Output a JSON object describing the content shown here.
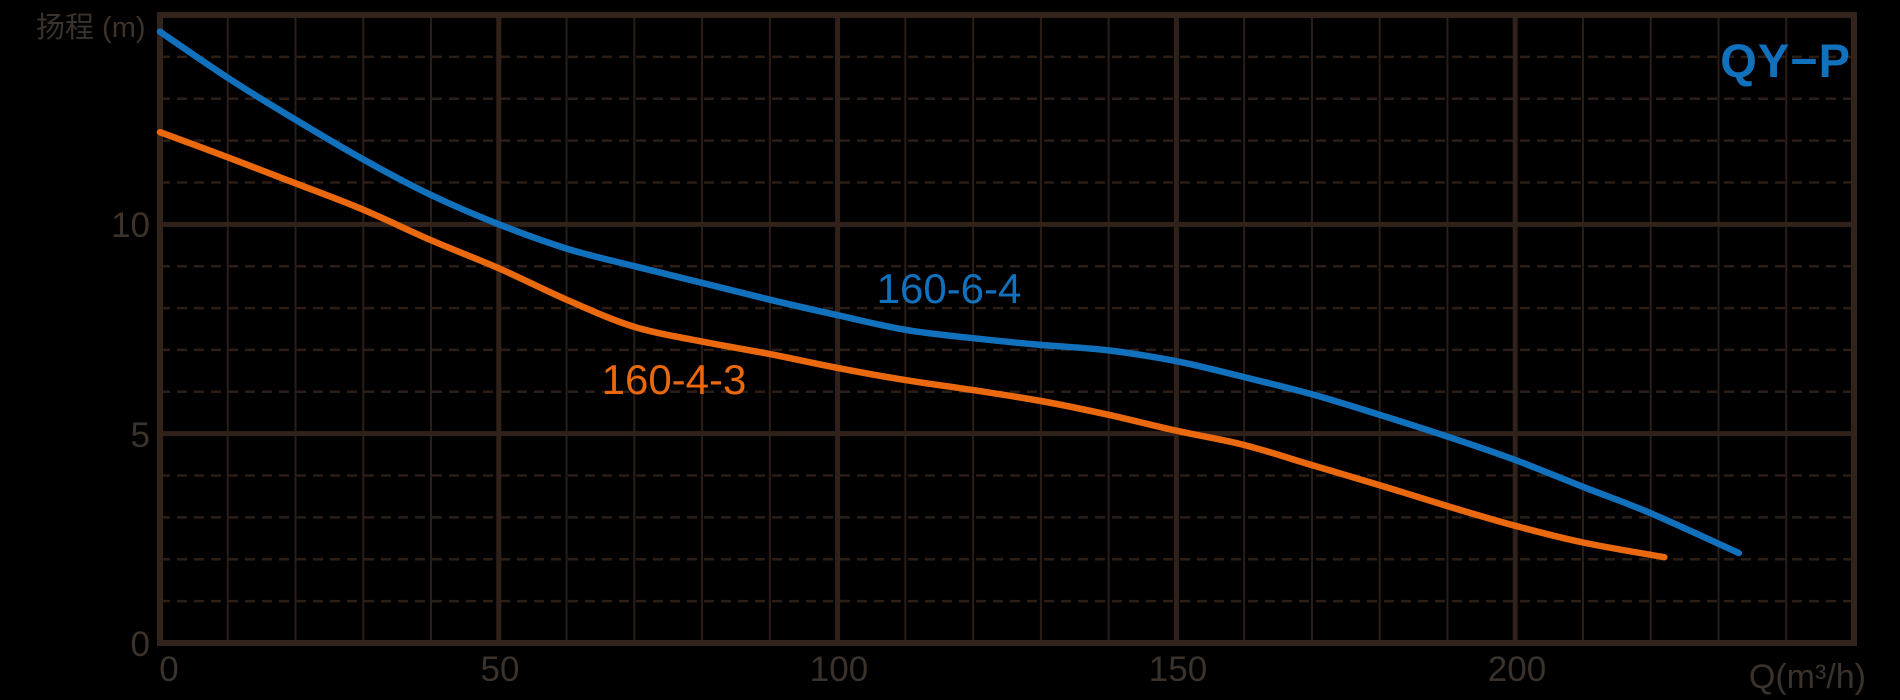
{
  "colors": {
    "background": "#000000",
    "grid": "#2b1e17",
    "grid_major": "#30221a",
    "border": "#33241b",
    "text": "#3b322b",
    "blue": "#1271bd",
    "orange": "#ea690e"
  },
  "chart_data": {
    "type": "line",
    "title": "QY−P",
    "xlabel": "Q(m³/h)",
    "ylabel": "扬程 (m)",
    "xlim": [
      0,
      250
    ],
    "ylim": [
      0,
      15
    ],
    "x_major_ticks": [
      0,
      50,
      100,
      150,
      200
    ],
    "x_tick_labels": [
      "0",
      "50",
      "100",
      "150",
      "200"
    ],
    "y_major_ticks": [
      0,
      5,
      10
    ],
    "y_tick_labels": [
      "0",
      "5",
      "10"
    ],
    "x_minor_step": 10,
    "y_minor_step": 1,
    "grid": "minor solid vertical, minor dashed horizontal, major solid",
    "legend_position": "inline-labels",
    "series": [
      {
        "name": "160-6-4",
        "color": "#1271bd",
        "points": [
          [
            0,
            14.6
          ],
          [
            10,
            13.5
          ],
          [
            20,
            12.5
          ],
          [
            30,
            11.55
          ],
          [
            40,
            10.7
          ],
          [
            50,
            10.0
          ],
          [
            60,
            9.42
          ],
          [
            70,
            9.0
          ],
          [
            80,
            8.6
          ],
          [
            90,
            8.2
          ],
          [
            100,
            7.83
          ],
          [
            110,
            7.48
          ],
          [
            120,
            7.28
          ],
          [
            130,
            7.12
          ],
          [
            140,
            6.99
          ],
          [
            150,
            6.73
          ],
          [
            160,
            6.35
          ],
          [
            170,
            5.94
          ],
          [
            180,
            5.45
          ],
          [
            190,
            4.93
          ],
          [
            200,
            4.37
          ],
          [
            210,
            3.73
          ],
          [
            220,
            3.1
          ],
          [
            233,
            2.15
          ]
        ]
      },
      {
        "name": "160-4-3",
        "color": "#ea690e",
        "points": [
          [
            0,
            12.2
          ],
          [
            10,
            11.6
          ],
          [
            20,
            10.98
          ],
          [
            30,
            10.35
          ],
          [
            40,
            9.62
          ],
          [
            50,
            8.95
          ],
          [
            60,
            8.2
          ],
          [
            70,
            7.55
          ],
          [
            80,
            7.2
          ],
          [
            90,
            6.9
          ],
          [
            100,
            6.57
          ],
          [
            110,
            6.28
          ],
          [
            120,
            6.04
          ],
          [
            130,
            5.78
          ],
          [
            140,
            5.45
          ],
          [
            150,
            5.07
          ],
          [
            160,
            4.73
          ],
          [
            170,
            4.25
          ],
          [
            180,
            3.77
          ],
          [
            190,
            3.27
          ],
          [
            200,
            2.8
          ],
          [
            210,
            2.4
          ],
          [
            222,
            2.05
          ]
        ]
      }
    ]
  }
}
